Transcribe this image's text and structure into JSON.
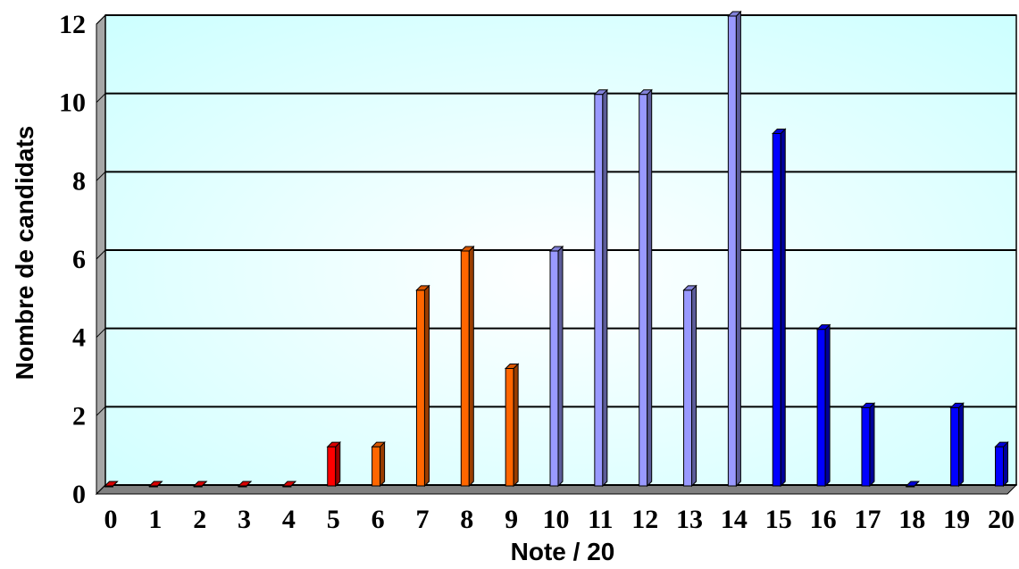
{
  "chart_data": {
    "type": "bar",
    "title": "",
    "xlabel": "Note / 20",
    "ylabel": "Nombre de candidats",
    "ylim": [
      0,
      12
    ],
    "yticks": [
      "0",
      "2",
      "4",
      "6",
      "8",
      "10",
      "12"
    ],
    "categories": [
      "0",
      "1",
      "2",
      "3",
      "4",
      "5",
      "6",
      "7",
      "8",
      "9",
      "10",
      "11",
      "12",
      "13",
      "14",
      "15",
      "16",
      "17",
      "18",
      "19",
      "20"
    ],
    "values": [
      0,
      0,
      0,
      0,
      0,
      1,
      1,
      5,
      6,
      3,
      6,
      10,
      10,
      5,
      12,
      9,
      4,
      2,
      0,
      2,
      1
    ],
    "bar_colors": [
      "#ff0000",
      "#ff0000",
      "#ff0000",
      "#ff0000",
      "#ff0000",
      "#ff0000",
      "#ff6600",
      "#ff6600",
      "#ff6600",
      "#ff6600",
      "#9999ff",
      "#9999ff",
      "#9999ff",
      "#9999ff",
      "#9999ff",
      "#0000ff",
      "#0000ff",
      "#0000ff",
      "#0000ff",
      "#0000ff",
      "#0000ff"
    ],
    "grid": true,
    "legend": "none",
    "background_color": "#ccffff",
    "gridline_color": "#000000"
  }
}
